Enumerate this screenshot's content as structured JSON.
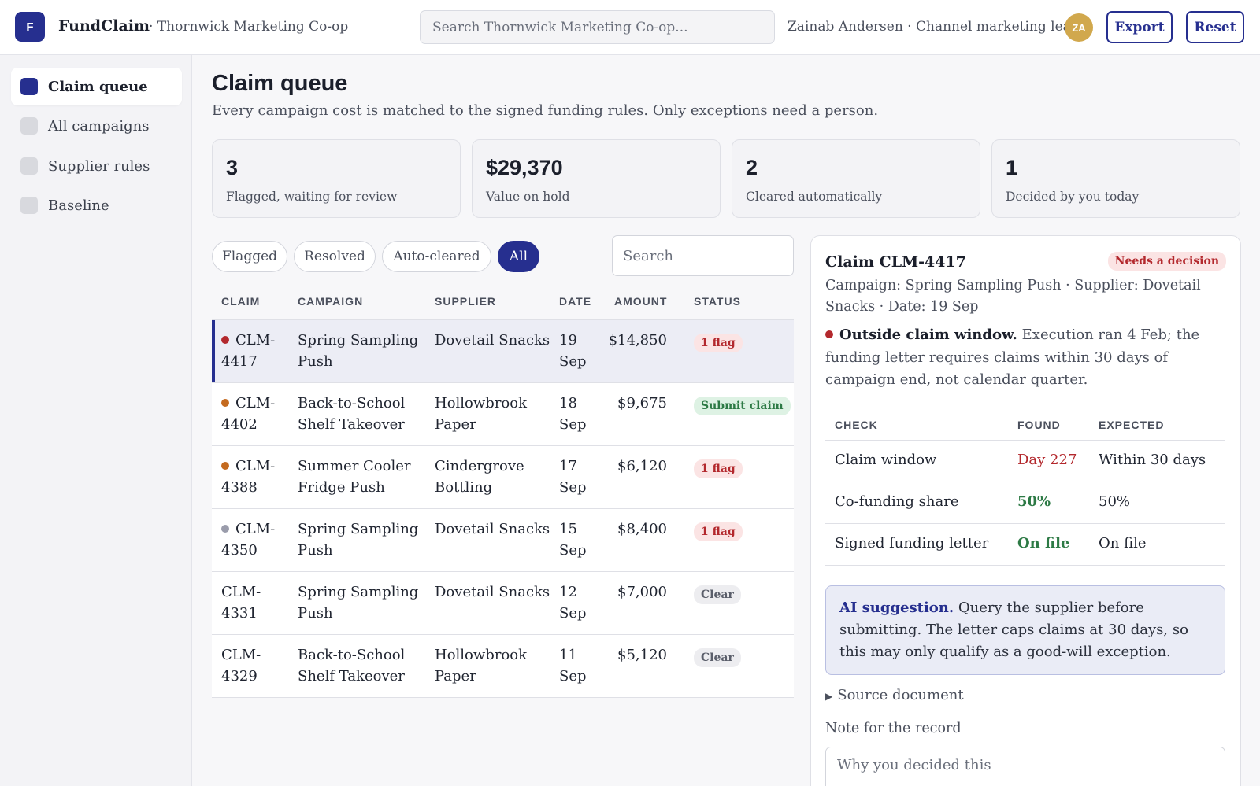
{
  "app": {
    "logo_letter": "F",
    "name": "FundClaim",
    "org": "· Thornwick Marketing Co-op",
    "search_placeholder": "Search Thornwick Marketing Co-op...",
    "user": "Zainab Andersen · Channel marketing lead",
    "avatar_initials": "ZA",
    "export_label": "Export",
    "reset_label": "Reset"
  },
  "sidebar": {
    "items": [
      {
        "label": "Claim queue",
        "active": true
      },
      {
        "label": "All campaigns",
        "active": false
      },
      {
        "label": "Supplier rules",
        "active": false
      },
      {
        "label": "Baseline",
        "active": false
      }
    ]
  },
  "main": {
    "title": "Claim queue",
    "subtitle": "Every campaign cost is matched to the signed funding rules. Only exceptions need a person."
  },
  "stats": [
    {
      "value": "3",
      "label": "Flagged, waiting for review"
    },
    {
      "value": "$29,370",
      "label": "Value on hold"
    },
    {
      "value": "2",
      "label": "Cleared automatically"
    },
    {
      "value": "1",
      "label": "Decided by you today"
    }
  ],
  "filters": {
    "chips": [
      "Flagged",
      "Resolved",
      "Auto-cleared",
      "All"
    ],
    "active": "All",
    "search_placeholder": "Search"
  },
  "table": {
    "headers": [
      "CLAIM",
      "CAMPAIGN",
      "SUPPLIER",
      "DATE",
      "AMOUNT",
      "STATUS"
    ],
    "rows": [
      {
        "claim": "CLM-4417",
        "campaign": "Spring Sampling Push",
        "supplier": "Dovetail Snacks",
        "date": "19 Sep",
        "amount": "$14,850",
        "status": "1 flag",
        "status_kind": "flag",
        "dot": "#b3282d",
        "selected": true
      },
      {
        "claim": "CLM-4402",
        "campaign": "Back-to-School Shelf Takeover",
        "supplier": "Hollowbrook Paper",
        "date": "18 Sep",
        "amount": "$9,675",
        "status": "Submit claim",
        "status_kind": "submit",
        "dot": "#c46a1f",
        "selected": false
      },
      {
        "claim": "CLM-4388",
        "campaign": "Summer Cooler Fridge Push",
        "supplier": "Cindergrove Bottling",
        "date": "17 Sep",
        "amount": "$6,120",
        "status": "1 flag",
        "status_kind": "flag",
        "dot": "#c46a1f",
        "selected": false
      },
      {
        "claim": "CLM-4350",
        "campaign": "Spring Sampling Push",
        "supplier": "Dovetail Snacks",
        "date": "15 Sep",
        "amount": "$8,400",
        "status": "1 flag",
        "status_kind": "flag",
        "dot": "#9a9cab",
        "selected": false
      },
      {
        "claim": "CLM-4331",
        "campaign": "Spring Sampling Push",
        "supplier": "Dovetail Snacks",
        "date": "12 Sep",
        "amount": "$7,000",
        "status": "Clear",
        "status_kind": "clear",
        "dot": null,
        "selected": false
      },
      {
        "claim": "CLM-4329",
        "campaign": "Back-to-School Shelf Takeover",
        "supplier": "Hollowbrook Paper",
        "date": "11 Sep",
        "amount": "$5,120",
        "status": "Clear",
        "status_kind": "clear",
        "dot": null,
        "selected": false
      }
    ]
  },
  "detail": {
    "title": "Claim CLM-4417",
    "badge": "Needs a decision",
    "meta": "Campaign: Spring Sampling Push · Supplier: Dovetail Snacks · Date: 19 Sep",
    "issue_title": "Outside claim window.",
    "issue_text": " Execution ran 4 Feb; the funding letter requires claims within 30 days of campaign end, not calendar quarter.",
    "checks_headers": [
      "CHECK",
      "FOUND",
      "EXPECTED"
    ],
    "checks": [
      {
        "check": "Claim window",
        "found": "Day 227",
        "expected": "Within 30 days",
        "ok": false
      },
      {
        "check": "Co-funding share",
        "found": "50%",
        "expected": "50%",
        "ok": true
      },
      {
        "check": "Signed funding letter",
        "found": "On file",
        "expected": "On file",
        "ok": true
      }
    ],
    "ai_label": "AI suggestion.",
    "ai_text": " Query the supplier before submitting. The letter caps claims at 30 days, so this may only qualify as a good-will exception.",
    "source_label": "Source document",
    "note_label": "Note for the record",
    "note_placeholder": "Why you decided this"
  },
  "colors": {
    "accent": "#262f8f",
    "flag": "#b3282d",
    "ok": "#2d7a45",
    "avatar": "#d1a84d"
  }
}
